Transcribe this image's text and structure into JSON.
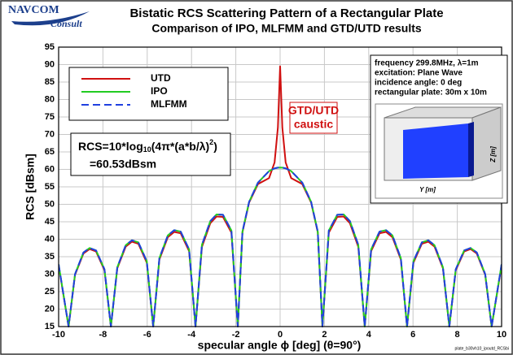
{
  "logo": {
    "main": "NAVCOM",
    "sub": "Consult"
  },
  "footer": "plate_b30vh10_ipoutd_RCSbi",
  "chart_data": {
    "type": "line",
    "title": "Bistatic RCS Scattering Pattern of a Rectangular Plate",
    "subtitle": "Comparison of IPO, MLFMM and GTD/UTD results",
    "xlabel": "specular angle ϕ [deg] (θ=90°)",
    "ylabel": "RCS [dBsm]",
    "xlim": [
      -10,
      10
    ],
    "ylim": [
      15,
      95
    ],
    "xticks": [
      -10,
      -8,
      -6,
      -4,
      -2,
      0,
      2,
      4,
      6,
      8,
      10
    ],
    "yticks": [
      15,
      20,
      25,
      30,
      35,
      40,
      45,
      50,
      55,
      60,
      65,
      70,
      75,
      80,
      85,
      90,
      95
    ],
    "grid": true,
    "x": [
      -10,
      -9.55,
      -9.26,
      -8.88,
      -8.6,
      -8.31,
      -7.93,
      -7.64,
      -7.35,
      -6.97,
      -6.69,
      -6.4,
      -6.02,
      -5.73,
      -5.45,
      -5.07,
      -4.78,
      -4.49,
      -4.11,
      -3.82,
      -3.53,
      -3.15,
      -2.87,
      -2.58,
      -2.2,
      -1.91,
      -1.7,
      -1.4,
      -1,
      -0.5,
      -0.25,
      -0.1,
      0,
      0.1,
      0.25,
      0.5,
      1,
      1.4,
      1.7,
      1.91,
      2.2,
      2.58,
      2.87,
      3.15,
      3.53,
      3.82,
      4.11,
      4.49,
      4.78,
      5.07,
      5.45,
      5.73,
      6.02,
      6.4,
      6.69,
      6.97,
      7.35,
      7.64,
      7.93,
      8.31,
      8.6,
      8.88,
      9.26,
      9.55,
      10
    ],
    "series": [
      {
        "name": "UTD",
        "color": "#d01010",
        "dash": false,
        "values": [
          32.5,
          15,
          29.8,
          35.9,
          37.2,
          36.5,
          31.1,
          15,
          31.7,
          37.9,
          39.3,
          38.7,
          33.3,
          15,
          34.2,
          40.6,
          42.1,
          41.7,
          36.6,
          15,
          37.8,
          44.6,
          46.5,
          46.4,
          41.9,
          15,
          42.0,
          50.5,
          55.8,
          57.5,
          62,
          72,
          89.5,
          72,
          62,
          57.5,
          55.8,
          50.5,
          42.0,
          15,
          41.9,
          46.4,
          46.5,
          44.6,
          37.8,
          15,
          36.6,
          41.7,
          42.1,
          40.6,
          34.2,
          15,
          33.3,
          38.7,
          39.3,
          37.9,
          31.7,
          15,
          31.1,
          36.5,
          37.2,
          35.9,
          29.8,
          15,
          32.5
        ]
      },
      {
        "name": "IPO",
        "color": "#22cc22",
        "dash": false,
        "values": [
          32.8,
          15,
          30.0,
          36.2,
          37.5,
          36.8,
          31.4,
          15,
          32.0,
          38.3,
          39.7,
          39.1,
          33.7,
          15,
          34.6,
          41.1,
          42.6,
          42.2,
          37.1,
          15,
          38.4,
          45.2,
          47.1,
          47.0,
          42.5,
          15,
          42.2,
          50.7,
          56.2,
          59.5,
          60.3,
          60.5,
          60.53,
          60.5,
          60.3,
          59.5,
          56.2,
          50.7,
          42.2,
          15,
          42.5,
          47.0,
          47.1,
          45.2,
          38.4,
          15,
          37.1,
          42.2,
          42.6,
          41.1,
          34.6,
          15,
          33.7,
          39.1,
          39.7,
          38.3,
          32.0,
          15,
          31.4,
          36.8,
          37.5,
          36.2,
          30.0,
          15,
          32.8
        ]
      },
      {
        "name": "MLFMM",
        "color": "#2040e0",
        "dash": true,
        "values": [
          32.8,
          15,
          30.0,
          36.2,
          37.5,
          36.8,
          31.4,
          15,
          32.0,
          38.3,
          39.7,
          39.1,
          33.7,
          15,
          34.6,
          41.1,
          42.6,
          42.2,
          37.1,
          15,
          38.4,
          45.2,
          47.1,
          47.0,
          42.5,
          15,
          42.2,
          50.7,
          56.2,
          59.5,
          60.3,
          60.5,
          60.53,
          60.5,
          60.3,
          59.5,
          56.2,
          50.7,
          42.2,
          15,
          42.5,
          47.0,
          47.1,
          45.2,
          38.4,
          15,
          37.1,
          42.2,
          42.6,
          41.1,
          34.6,
          15,
          33.7,
          39.1,
          39.7,
          38.3,
          32.0,
          15,
          31.4,
          36.8,
          37.5,
          36.2,
          30.0,
          15,
          32.8
        ]
      }
    ],
    "formula": {
      "parts": [
        "RCS=10*log",
        "10",
        "(4π*(a*b/λ)",
        "2",
        ")"
      ],
      "result": "=60.53dBsm"
    },
    "caustic": [
      "GTD/UTD",
      "caustic"
    ],
    "info": [
      "frequency 299.8MHz, λ=1m",
      "excitation: Plane Wave",
      "incidence angle: 0 deg",
      "rectangular plate: 30m x 10m"
    ],
    "inset_labels": [
      "Y [m]",
      "Z [m]"
    ]
  }
}
